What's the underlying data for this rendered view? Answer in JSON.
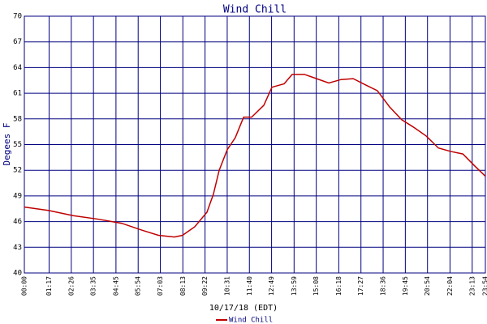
{
  "chart_data": {
    "type": "line",
    "title": "Wind Chill",
    "x_label": "10/17/18 (EDT)",
    "y_label": "Degees F",
    "x": [
      0,
      76,
      152,
      227,
      303,
      366,
      417,
      467,
      492,
      530,
      568,
      588,
      606,
      631,
      656,
      682,
      707,
      745,
      770,
      808,
      833,
      871,
      909,
      947,
      985,
      1023,
      1060,
      1098,
      1136,
      1174,
      1212,
      1250,
      1288,
      1326,
      1364,
      1401,
      1434
    ],
    "series": [
      {
        "name": "Wind Chill",
        "color": "#c00000",
        "values": [
          47.7,
          47.3,
          46.7,
          46.3,
          45.8,
          45.0,
          44.4,
          44.2,
          44.4,
          45.4,
          47.1,
          49.2,
          52.0,
          54.4,
          55.8,
          58.2,
          58.2,
          59.6,
          61.7,
          62.1,
          63.2,
          63.2,
          62.7,
          62.2,
          62.6,
          62.7,
          62.0,
          61.3,
          59.4,
          57.9,
          57.0,
          56.0,
          54.6,
          54.2,
          53.9,
          52.5,
          51.3
        ]
      }
    ],
    "xlim": [
      0,
      1434
    ],
    "xticks": [
      {
        "value": 0,
        "label": "00:00"
      },
      {
        "value": 77,
        "label": "01:17"
      },
      {
        "value": 146,
        "label": "02:26"
      },
      {
        "value": 215,
        "label": "03:35"
      },
      {
        "value": 285,
        "label": "04:45"
      },
      {
        "value": 354,
        "label": "05:54"
      },
      {
        "value": 423,
        "label": "07:03"
      },
      {
        "value": 493,
        "label": "08:13"
      },
      {
        "value": 562,
        "label": "09:22"
      },
      {
        "value": 631,
        "label": "10:31"
      },
      {
        "value": 700,
        "label": "11:40"
      },
      {
        "value": 769,
        "label": "12:49"
      },
      {
        "value": 839,
        "label": "13:59"
      },
      {
        "value": 908,
        "label": "15:08"
      },
      {
        "value": 978,
        "label": "16:18"
      },
      {
        "value": 1047,
        "label": "17:27"
      },
      {
        "value": 1116,
        "label": "18:36"
      },
      {
        "value": 1185,
        "label": "19:45"
      },
      {
        "value": 1254,
        "label": "20:54"
      },
      {
        "value": 1324,
        "label": "22:04"
      },
      {
        "value": 1393,
        "label": "23:13"
      },
      {
        "value": 1434,
        "label": "23:54"
      }
    ],
    "ylim": [
      40,
      70
    ],
    "yticks": [
      40,
      43,
      46,
      49,
      52,
      55,
      58,
      61,
      64,
      67,
      70
    ],
    "grid": true,
    "grid_color": "#000080",
    "legend": "bottom"
  }
}
